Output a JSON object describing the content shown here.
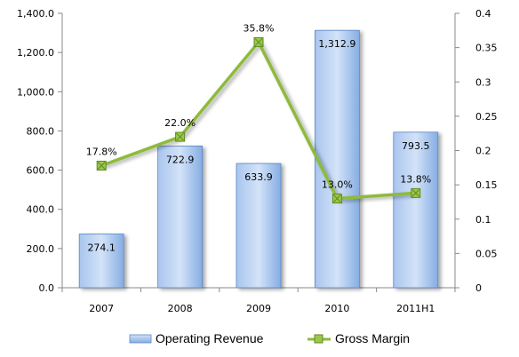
{
  "chart_data": {
    "type": "bar",
    "categories": [
      "2007",
      "2008",
      "2009",
      "2010",
      "2011H1"
    ],
    "series": [
      {
        "name": "Operating Revenue",
        "type": "bar",
        "axis": "left",
        "values": [
          274.1,
          722.9,
          633.9,
          1312.9,
          793.5
        ],
        "labels": [
          "274.1",
          "722.9",
          "633.9",
          "1,312.9",
          "793.5"
        ]
      },
      {
        "name": "Gross Margin",
        "type": "line",
        "axis": "right",
        "values": [
          0.178,
          0.22,
          0.358,
          0.13,
          0.138
        ],
        "labels": [
          "17.8%",
          "22.0%",
          "35.8%",
          "13.0%",
          "13.8%"
        ]
      }
    ],
    "y_left": {
      "ylim": [
        0,
        1400
      ],
      "ticks": [
        "0.0",
        "200.0",
        "400.0",
        "600.0",
        "800.0",
        "1,000.0",
        "1,200.0",
        "1,400.0"
      ]
    },
    "y_right": {
      "ylim": [
        0,
        0.4
      ],
      "ticks": [
        "0",
        "0.05",
        "0.1",
        "0.15",
        "0.2",
        "0.25",
        "0.3",
        "0.35",
        "0.4"
      ]
    },
    "legend_position": "bottom",
    "grid": false,
    "colors": {
      "bar_fill_top": "#c9dcf6",
      "bar_fill_bottom": "#7ea6e0",
      "bar_stroke": "#5b87c6",
      "line": "#8dbb3b",
      "marker_fill": "#9bc84a",
      "marker_stroke": "#5f8a1f",
      "axis": "#888888"
    }
  },
  "legend": {
    "revenue_label": "Operating Revenue",
    "margin_label": "Gross Margin"
  }
}
